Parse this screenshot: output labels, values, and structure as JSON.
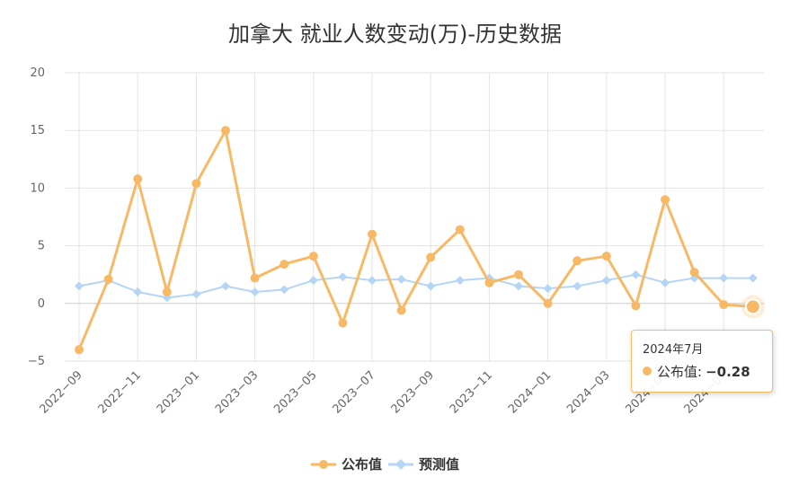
{
  "chart_data": {
    "type": "line",
    "title": "加拿大 就业人数变动(万)-历史数据",
    "x": [
      "2022-09",
      "2022-10",
      "2022-11",
      "2022-12",
      "2023-01",
      "2023-02",
      "2023-03",
      "2023-04",
      "2023-05",
      "2023-06",
      "2023-07",
      "2023-08",
      "2023-09",
      "2023-10",
      "2023-11",
      "2023-12",
      "2024-01",
      "2024-02",
      "2024-03",
      "2024-04",
      "2024-05",
      "2024-06",
      "2024-07",
      "2024-08"
    ],
    "x_tick_labels": [
      "2022-09",
      "2022-11",
      "2023-01",
      "2023-03",
      "2023-05",
      "2023-07",
      "2023-09",
      "2023-11",
      "2024-01",
      "2024-03",
      "2024-05",
      "2024-07"
    ],
    "ylim": [
      -5,
      20
    ],
    "y_ticks": [
      -5,
      0,
      5,
      10,
      15,
      20
    ],
    "grid": true,
    "legend_position": "bottom-center",
    "series": [
      {
        "name": "公布值",
        "color": "#f7b966",
        "marker": "circle",
        "values": [
          -4.0,
          2.1,
          10.8,
          1.0,
          10.4,
          15.0,
          2.2,
          3.4,
          4.1,
          -1.7,
          6.0,
          -0.6,
          4.0,
          6.4,
          1.8,
          2.5,
          0.0,
          3.7,
          4.1,
          -0.2,
          9.0,
          2.7,
          -0.1,
          -0.28
        ]
      },
      {
        "name": "预测值",
        "color": "#b5d5f5",
        "marker": "diamond",
        "values": [
          1.5,
          2.0,
          1.0,
          0.5,
          0.8,
          1.5,
          1.0,
          1.2,
          2.0,
          2.3,
          2.0,
          2.1,
          1.5,
          2.0,
          2.2,
          1.5,
          1.3,
          1.5,
          2.0,
          2.5,
          1.8,
          2.2,
          2.2,
          2.2
        ]
      }
    ]
  },
  "tooltip": {
    "date": "2024年7月",
    "series_label": "公布值:",
    "value": "−0.28"
  }
}
